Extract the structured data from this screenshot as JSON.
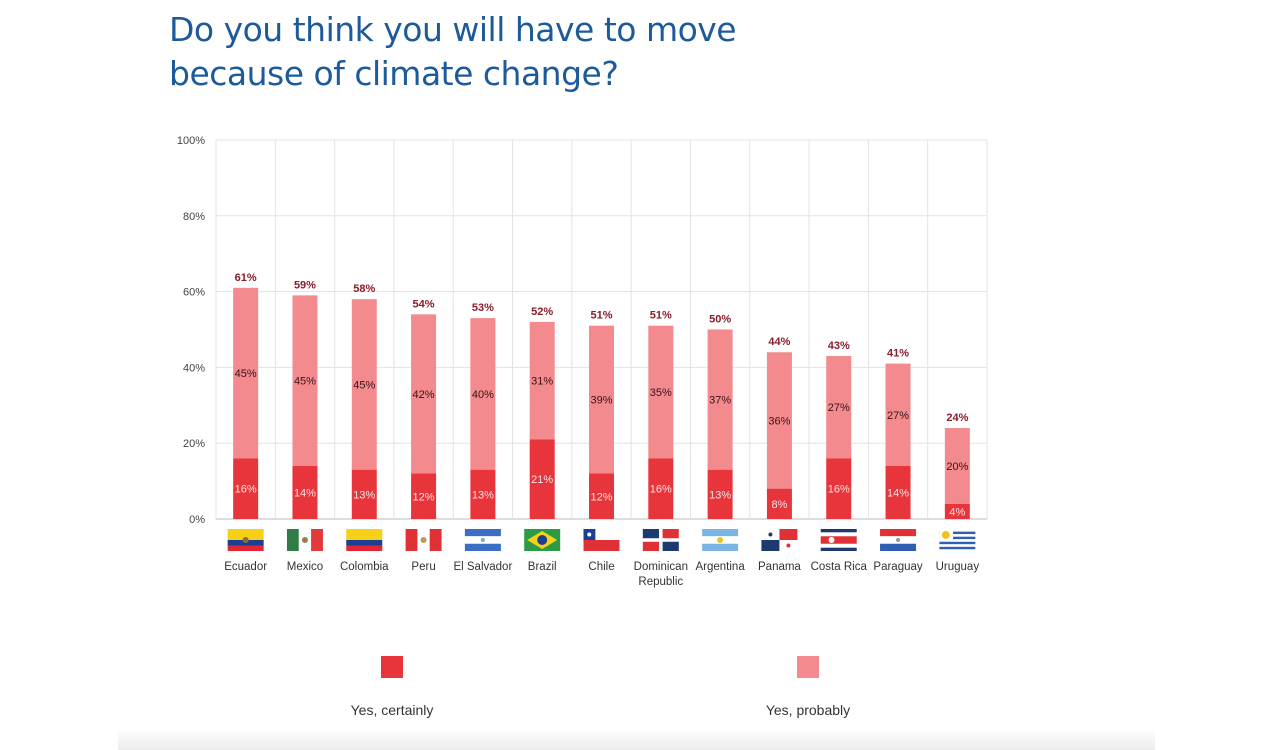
{
  "title": "Do you think you will have to move because of climate change?",
  "colors": {
    "certainly": "#e8353b",
    "probably": "#f28a8e",
    "total_label": "#8a1c2b",
    "title": "#1c5a9c"
  },
  "chart_data": {
    "type": "bar",
    "stacked": true,
    "categories": [
      "Ecuador",
      "Mexico",
      "Colombia",
      "Peru",
      "El Salvador",
      "Brazil",
      "Chile",
      "Dominican Republic",
      "Argentina",
      "Panama",
      "Costa Rica",
      "Paraguay",
      "Uruguay"
    ],
    "series": [
      {
        "name": "Yes, certainly",
        "values": [
          16,
          14,
          13,
          12,
          13,
          21,
          12,
          16,
          13,
          8,
          16,
          14,
          4
        ]
      },
      {
        "name": "Yes, probably",
        "values": [
          45,
          45,
          45,
          42,
          40,
          31,
          39,
          35,
          37,
          36,
          27,
          27,
          20
        ]
      }
    ],
    "totals": [
      61,
      59,
      58,
      54,
      53,
      52,
      51,
      51,
      50,
      44,
      43,
      41,
      24
    ],
    "ylim": [
      0,
      100
    ],
    "yticks": [
      "0%",
      "20%",
      "40%",
      "60%",
      "80%",
      "100%"
    ],
    "grid": true,
    "legend": "bottom",
    "flags": [
      "ecuador-flag",
      "mexico-flag",
      "colombia-flag",
      "peru-flag",
      "el-salvador-flag",
      "brazil-flag",
      "chile-flag",
      "dominican-republic-flag",
      "argentina-flag",
      "panama-flag",
      "costa-rica-flag",
      "paraguay-flag",
      "uruguay-flag"
    ]
  },
  "legend": {
    "certainly": "Yes, certainly",
    "probably": "Yes, probably"
  }
}
